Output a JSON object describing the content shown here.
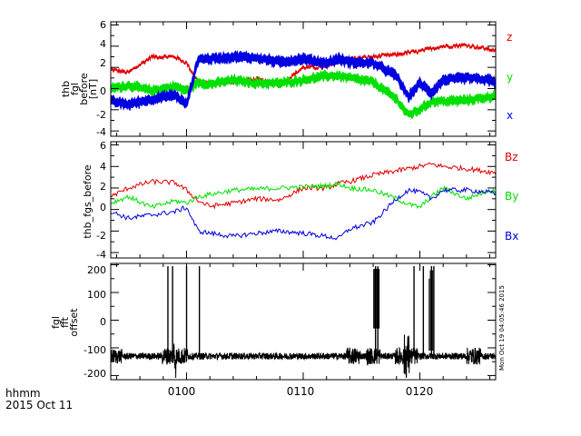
{
  "x_axis": {
    "range_minutes": [
      -6.5,
      26.5
    ],
    "ticks": [
      {
        "value": 0,
        "label": "0100"
      },
      {
        "value": 10,
        "label": "0110"
      },
      {
        "value": 20,
        "label": "0120"
      }
    ],
    "time_format_label": "hhmm",
    "date_label": "2015 Oct 11"
  },
  "timestamp": "Mon Oct 19 04:05:46 2015",
  "panels": [
    {
      "id": "fgl",
      "ylabel_lines": [
        "thb",
        "fgl",
        "before",
        "[nT]"
      ],
      "yticks": [
        "6",
        "4",
        "2",
        "0",
        "-2",
        "-4"
      ],
      "legend": [
        {
          "label": "z",
          "color": "#e00000"
        },
        {
          "label": "y",
          "color": "#00e000"
        },
        {
          "label": "x",
          "color": "#0000e0"
        }
      ]
    },
    {
      "id": "fgs",
      "ylabel_lines": [
        "thb_fgs_before"
      ],
      "yticks": [
        "6",
        "4",
        "2",
        "0",
        "-2",
        "-4"
      ],
      "legend": [
        {
          "label": "Bz",
          "color": "#e00000"
        },
        {
          "label": "By",
          "color": "#00e000"
        },
        {
          "label": "Bx",
          "color": "#0000e0"
        }
      ]
    },
    {
      "id": "offset",
      "ylabel_lines": [
        "fgl",
        "fft",
        "offset"
      ],
      "yticks": [
        "200",
        "100",
        "0",
        "-100",
        "-200"
      ],
      "legend": []
    }
  ],
  "chart_data": [
    {
      "type": "line",
      "title": "thb fgl before [nT]",
      "xlabel": "hhmm",
      "ylabel": "thb fgl before [nT]",
      "xlim": [
        -6.5,
        26.5
      ],
      "ylim": [
        -4.5,
        6.3
      ],
      "x": [
        -6.5,
        -5,
        -3,
        -1,
        0,
        1,
        2,
        4,
        6,
        8,
        10,
        12,
        13,
        14,
        16,
        18,
        19,
        20,
        21,
        22,
        24,
        26,
        26.5
      ],
      "series": [
        {
          "name": "z",
          "color": "#e00000",
          "band": 0.2,
          "values": [
            1.8,
            1.5,
            3.0,
            3.0,
            2.4,
            0.6,
            0.5,
            0.6,
            0.9,
            0.3,
            2.0,
            2.0,
            2.5,
            2.8,
            3.0,
            3.2,
            3.4,
            3.5,
            3.8,
            4.0,
            4.1,
            3.7,
            3.6
          ]
        },
        {
          "name": "y",
          "color": "#00e000",
          "band": 0.8,
          "values": [
            0.0,
            0.3,
            -0.2,
            0.2,
            -0.2,
            0.6,
            0.4,
            0.8,
            0.5,
            0.5,
            0.8,
            1.2,
            1.2,
            1.0,
            0.6,
            -1.0,
            -2.5,
            -2.0,
            -1.2,
            -1.2,
            -1.1,
            -0.8,
            -0.6
          ]
        },
        {
          "name": "x",
          "color": "#0000e0",
          "band": 0.9,
          "values": [
            -1.2,
            -1.5,
            -1.0,
            -0.6,
            -1.5,
            2.8,
            2.8,
            3.0,
            2.9,
            2.5,
            2.8,
            2.4,
            2.8,
            2.5,
            2.4,
            1.2,
            -0.8,
            0.5,
            -0.4,
            0.8,
            1.0,
            0.8,
            0.5
          ]
        }
      ]
    },
    {
      "type": "line",
      "title": "thb_fgs_before",
      "xlabel": "hhmm",
      "ylabel": "thb_fgs_before",
      "xlim": [
        -6.5,
        26.5
      ],
      "ylim": [
        -4.5,
        6.3
      ],
      "x": [
        -6.5,
        -5,
        -3,
        -1,
        0,
        1,
        2,
        4,
        6,
        8,
        10,
        12,
        13,
        14,
        16,
        18,
        19,
        20,
        21,
        22,
        24,
        26,
        26.5
      ],
      "series": [
        {
          "name": "Bz",
          "color": "#e00000",
          "values": [
            1.2,
            2.0,
            2.6,
            2.5,
            1.8,
            0.8,
            0.3,
            0.6,
            1.0,
            0.9,
            2.0,
            2.0,
            2.4,
            2.6,
            3.2,
            3.6,
            3.8,
            4.0,
            4.2,
            4.0,
            3.8,
            3.5,
            3.4
          ]
        },
        {
          "name": "By",
          "color": "#00e000",
          "values": [
            0.6,
            1.2,
            0.2,
            0.8,
            0.6,
            1.2,
            1.4,
            1.8,
            1.9,
            2.0,
            2.1,
            2.2,
            2.4,
            2.0,
            1.8,
            1.0,
            0.5,
            0.2,
            1.2,
            2.0,
            1.0,
            1.8,
            1.6
          ]
        },
        {
          "name": "Bx",
          "color": "#0000e0",
          "values": [
            -0.2,
            -0.8,
            -0.5,
            -0.2,
            0.2,
            -2.0,
            -2.2,
            -2.5,
            -2.2,
            -2.0,
            -2.2,
            -2.5,
            -2.7,
            -1.8,
            -1.2,
            1.0,
            1.8,
            1.6,
            1.0,
            1.8,
            1.8,
            1.6,
            1.4
          ]
        }
      ]
    },
    {
      "type": "line",
      "title": "fgl fft offset",
      "xlabel": "hhmm",
      "ylabel": "fgl fft offset",
      "xlim": [
        -6.5,
        26.5
      ],
      "ylim": [
        -215,
        205
      ],
      "series": [
        {
          "name": "offset",
          "color": "#000000",
          "baseline": -130,
          "noise": 12,
          "bursts": [
            -1.5,
            -0.5,
            14.3,
            16.0,
            18.5,
            19.2,
            24.6
          ],
          "spikes": [
            -1.6,
            -1.2,
            0.0,
            1.1,
            16.2,
            16.4,
            19.5,
            20.3,
            21.0,
            21.2
          ]
        }
      ]
    }
  ]
}
